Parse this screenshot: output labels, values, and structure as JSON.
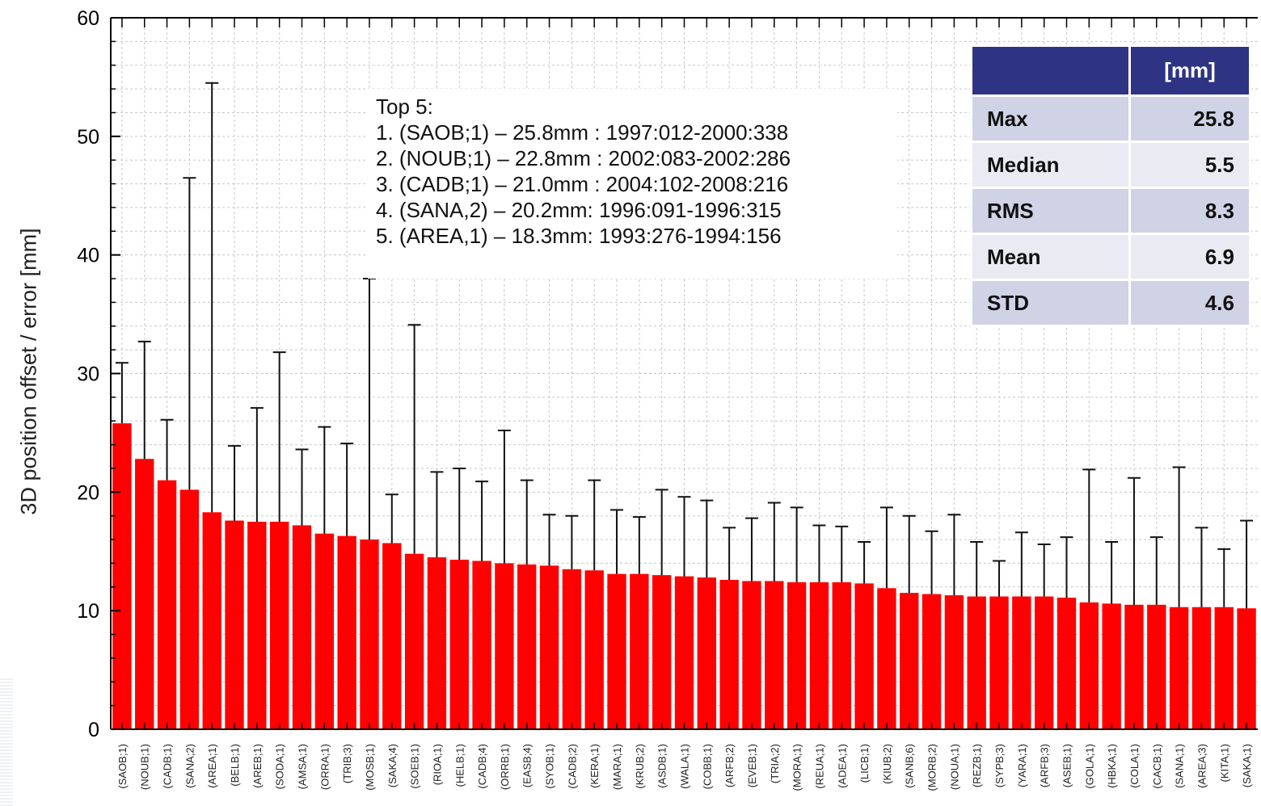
{
  "chart_data": {
    "type": "bar",
    "ylabel": "3D position offset / error [mm]",
    "ylim": [
      0,
      60
    ],
    "yticks": [
      0,
      10,
      20,
      30,
      40,
      50,
      60
    ],
    "grid": true,
    "error_bars": true,
    "categories": [
      "(SAOB;1)",
      "(NOUB;1)",
      "(CADB;1)",
      "(SANA;2)",
      "(AREA;1)",
      "(BELB;1)",
      "(AREB;1)",
      "(SODA;1)",
      "(AMSA;1)",
      "(ORRA;1)",
      "(TRIB;3)",
      "(MOSB;1)",
      "(SAKA;4)",
      "(SOEB;1)",
      "(RIOA;1)",
      "(HELB;1)",
      "(CADB;4)",
      "(ORRB;1)",
      "(EASB;4)",
      "(SYOB;1)",
      "(CADB;2)",
      "(KERA;1)",
      "(MARA;1)",
      "(KRUB;2)",
      "(ASDB;1)",
      "(WALA;1)",
      "(COBB;1)",
      "(ARFB;2)",
      "(EVEB;1)",
      "(TRIA;2)",
      "(MORA;1)",
      "(REUA;1)",
      "(ADEA;1)",
      "(LICB;1)",
      "(KIUB;2)",
      "(SANB;6)",
      "(MORB;2)",
      "(NOUA;1)",
      "(REZB;1)",
      "(SYPB;3)",
      "(YARA;1)",
      "(ARFB;3)",
      "(ASEB;1)",
      "(GOLA;1)",
      "(HBKA;1)",
      "(COLA;1)",
      "(CACB;1)",
      "(SANA;1)",
      "(AREA;3)",
      "(KITA;1)",
      "(SAKA;1)"
    ],
    "series": [
      {
        "values": [
          25.8,
          22.8,
          21.0,
          20.2,
          18.3,
          17.6,
          17.5,
          17.5,
          17.2,
          16.5,
          16.3,
          16.0,
          15.7,
          14.8,
          14.5,
          14.3,
          14.2,
          14.0,
          13.9,
          13.8,
          13.5,
          13.4,
          13.1,
          13.1,
          13.0,
          12.9,
          12.8,
          12.6,
          12.5,
          12.5,
          12.4,
          12.4,
          12.4,
          12.3,
          11.9,
          11.5,
          11.4,
          11.3,
          11.2,
          11.2,
          11.2,
          11.2,
          11.1,
          10.7,
          10.6,
          10.5,
          10.5,
          10.3,
          10.3,
          10.3,
          10.2
        ],
        "error_upper": [
          30.9,
          32.7,
          26.1,
          46.5,
          54.5,
          23.9,
          27.1,
          31.8,
          23.6,
          25.5,
          24.1,
          38.0,
          19.8,
          34.1,
          21.7,
          22.0,
          20.9,
          25.2,
          21.0,
          18.1,
          18.0,
          21.0,
          18.5,
          17.9,
          20.2,
          19.6,
          19.3,
          17.0,
          17.8,
          19.1,
          18.7,
          17.2,
          17.1,
          15.8,
          18.7,
          18.0,
          16.7,
          18.1,
          15.8,
          14.2,
          16.6,
          15.6,
          16.2,
          21.9,
          15.8,
          21.2,
          16.2,
          22.1,
          17.0,
          15.2,
          17.6
        ],
        "color": "#ff0000"
      }
    ]
  },
  "annotation": {
    "heading": "Top 5:",
    "lines": [
      "1. (SAOB;1) – 25.8mm : 1997:012-2000:338",
      "2. (NOUB;1) – 22.8mm : 2002:083-2002:286",
      "3. (CADB;1) – 21.0mm : 2004:102-2008:216",
      "4. (SANA,2) – 20.2mm:  1996:091-1996:315",
      "5. (AREA,1) – 18.3mm:  1993:276-1994:156"
    ]
  },
  "stats_table": {
    "header": [
      "",
      "[mm]"
    ],
    "rows": [
      {
        "label": "Max",
        "value": "25.8"
      },
      {
        "label": "Median",
        "value": "5.5"
      },
      {
        "label": "RMS",
        "value": "8.3"
      },
      {
        "label": "Mean",
        "value": "6.9"
      },
      {
        "label": "STD",
        "value": "4.6"
      }
    ],
    "header_color": "#2e3483"
  }
}
